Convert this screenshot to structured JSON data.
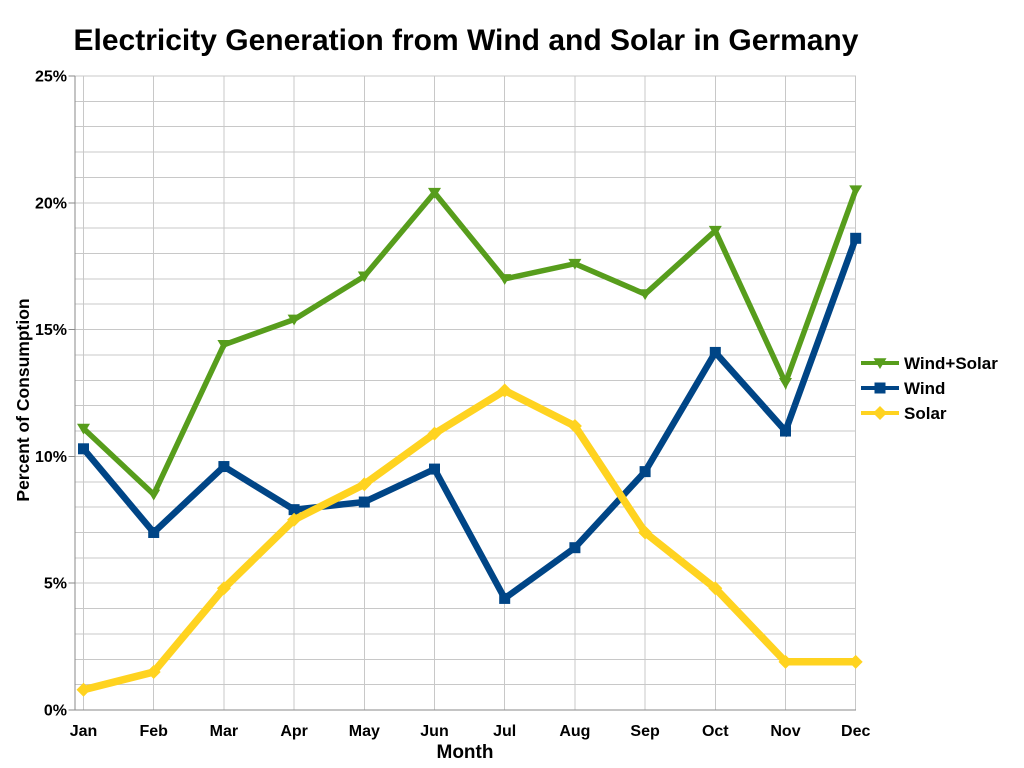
{
  "chart_data": {
    "type": "line",
    "title": "Electricity Generation from Wind and Solar in Germany",
    "xlabel": "Month",
    "ylabel": "Percent of Consumption",
    "categories": [
      "Jan",
      "Feb",
      "Mar",
      "Apr",
      "May",
      "Jun",
      "Jul",
      "Aug",
      "Sep",
      "Oct",
      "Nov",
      "Dec"
    ],
    "series": [
      {
        "name": "Wind+Solar",
        "color": "#579D1C",
        "marker": "triangle-down",
        "values": [
          11.1,
          8.5,
          14.4,
          15.4,
          17.1,
          20.4,
          17.0,
          17.6,
          16.4,
          18.9,
          12.9,
          20.5
        ]
      },
      {
        "name": "Wind",
        "color": "#004586",
        "marker": "square",
        "values": [
          10.3,
          7.0,
          9.6,
          7.9,
          8.2,
          9.5,
          4.4,
          6.4,
          9.4,
          14.1,
          11.0,
          18.6
        ]
      },
      {
        "name": "Solar",
        "color": "#FFD320",
        "marker": "diamond",
        "values": [
          0.8,
          1.5,
          4.8,
          7.5,
          8.9,
          10.9,
          12.6,
          11.2,
          7.0,
          4.8,
          1.9,
          1.9
        ]
      }
    ],
    "ylim": [
      0,
      25
    ],
    "ytick_values": [
      0,
      5,
      10,
      15,
      20,
      25
    ],
    "ytick_labels": [
      "0%",
      "5%",
      "10%",
      "15%",
      "20%",
      "25%"
    ],
    "minor_horizontal_grid_step": 1,
    "grid": true,
    "legend_position": "right",
    "colors": {
      "grid": "#C8C8C8",
      "axis": "#8A8A8A",
      "text": "#000000",
      "background": "#FFFFFF"
    }
  }
}
